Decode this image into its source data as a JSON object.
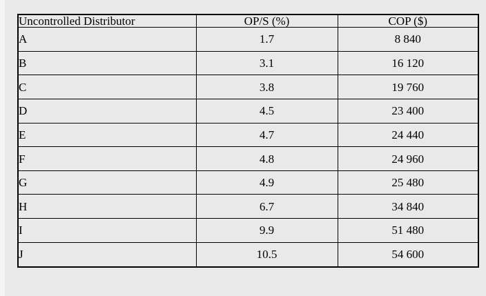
{
  "table": {
    "columns": [
      "Uncontrolled Distributor",
      "OP/S (%)",
      "COP ($)"
    ],
    "rows": [
      [
        "A",
        "1.7",
        "8 840"
      ],
      [
        "B",
        "3.1",
        "16 120"
      ],
      [
        "C",
        "3.8",
        "19 760"
      ],
      [
        "D",
        "4.5",
        "23 400"
      ],
      [
        "E",
        "4.7",
        "24 440"
      ],
      [
        "F",
        "4.8",
        "24 960"
      ],
      [
        "G",
        "4.9",
        "25 480"
      ],
      [
        "H",
        "6.7",
        "34 840"
      ],
      [
        "I",
        "9.9",
        "51 480"
      ],
      [
        "J",
        "10.5",
        "54 600"
      ]
    ]
  },
  "chart_data": {
    "type": "table",
    "title": "",
    "columns": [
      "Uncontrolled Distributor",
      "OP/S (%)",
      "COP ($)"
    ],
    "rows": [
      {
        "distributor": "A",
        "op_s_pct": 1.7,
        "cop_usd": 8840
      },
      {
        "distributor": "B",
        "op_s_pct": 3.1,
        "cop_usd": 16120
      },
      {
        "distributor": "C",
        "op_s_pct": 3.8,
        "cop_usd": 19760
      },
      {
        "distributor": "D",
        "op_s_pct": 4.5,
        "cop_usd": 23400
      },
      {
        "distributor": "E",
        "op_s_pct": 4.7,
        "cop_usd": 24440
      },
      {
        "distributor": "F",
        "op_s_pct": 4.8,
        "cop_usd": 24960
      },
      {
        "distributor": "G",
        "op_s_pct": 4.9,
        "cop_usd": 25480
      },
      {
        "distributor": "H",
        "op_s_pct": 6.7,
        "cop_usd": 34840
      },
      {
        "distributor": "I",
        "op_s_pct": 9.9,
        "cop_usd": 51480
      },
      {
        "distributor": "J",
        "op_s_pct": 10.5,
        "cop_usd": 54600
      }
    ]
  },
  "colors": {
    "background": "#e9e9e9",
    "border": "#000000",
    "text": "#000000"
  }
}
